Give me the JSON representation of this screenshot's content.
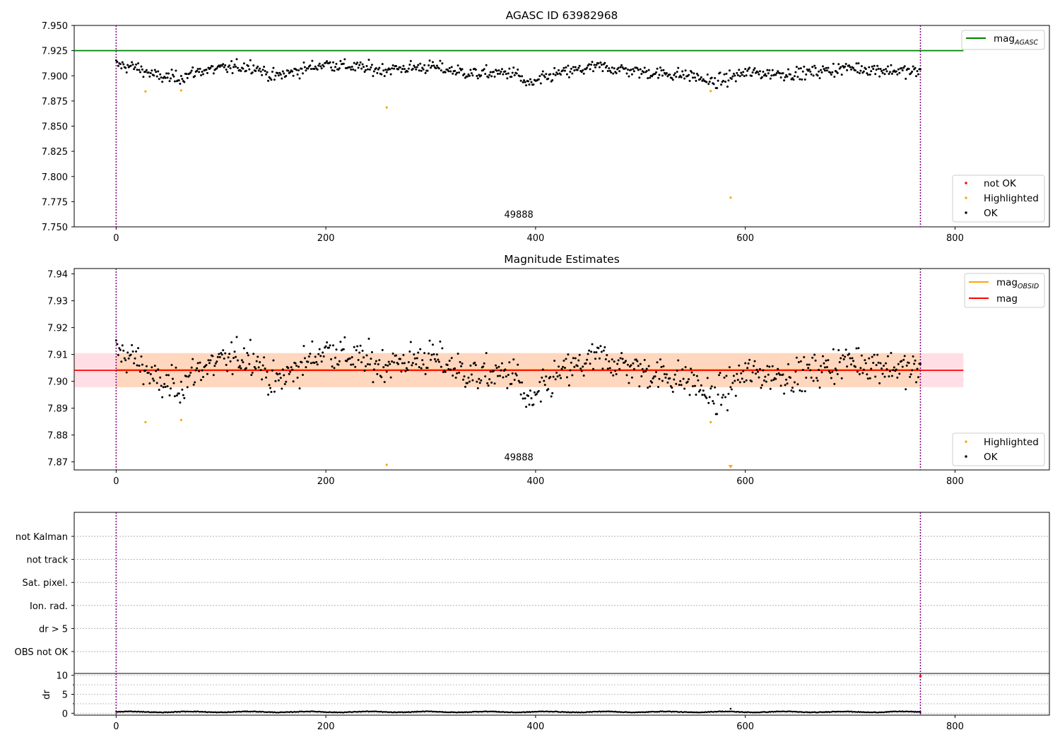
{
  "page_values": {
    "observation_id": "49888"
  },
  "chart_data": [
    {
      "type": "scatter",
      "title": "AGASC ID 63982968",
      "xlim": [
        -40,
        890
      ],
      "ylim": [
        7.75,
        7.95
      ],
      "x_ticks": [
        0,
        200,
        400,
        600,
        800
      ],
      "y_ticks": [
        7.75,
        7.775,
        7.8,
        7.825,
        7.85,
        7.875,
        7.9,
        7.925,
        7.95
      ],
      "y_tick_labels": [
        "7.750",
        "7.775",
        "7.800",
        "7.825",
        "7.850",
        "7.875",
        "7.900",
        "7.925",
        "7.950"
      ],
      "reference_lines": [
        {
          "name": "mag",
          "sub": "AGASC",
          "y": 7.925,
          "x_range": [
            -40,
            808
          ],
          "color": "#008000"
        }
      ],
      "vertical_lines": [
        0,
        767
      ],
      "annotation": {
        "text": "49888",
        "x": 384,
        "y": 7.759
      },
      "legends": [
        {
          "position": "top-right",
          "entries": [
            {
              "label": "mag",
              "sub": "AGASC",
              "marker": "line",
              "color": "#008000"
            }
          ]
        },
        {
          "position": "bottom-right",
          "entries": [
            {
              "label": "not OK",
              "marker": "dot",
              "color": "#ff0000"
            },
            {
              "label": "Highlighted",
              "marker": "dot",
              "color": "#ffa500"
            },
            {
              "label": "OK",
              "marker": "dot",
              "color": "#000000"
            }
          ]
        }
      ],
      "ok_series": {
        "name": "OK",
        "color": "#000000",
        "x_start": 0,
        "x_end": 767,
        "n": 768,
        "trend": [
          [
            0,
            7.911
          ],
          [
            20,
            7.908
          ],
          [
            40,
            7.899
          ],
          [
            60,
            7.898
          ],
          [
            80,
            7.905
          ],
          [
            130,
            7.91
          ],
          [
            150,
            7.899
          ],
          [
            200,
            7.912
          ],
          [
            250,
            7.906
          ],
          [
            300,
            7.909
          ],
          [
            340,
            7.902
          ],
          [
            380,
            7.903
          ],
          [
            393,
            7.891
          ],
          [
            420,
            7.902
          ],
          [
            460,
            7.909
          ],
          [
            500,
            7.904
          ],
          [
            550,
            7.9
          ],
          [
            570,
            7.893
          ],
          [
            600,
            7.903
          ],
          [
            650,
            7.902
          ],
          [
            700,
            7.908
          ],
          [
            760,
            7.904
          ]
        ],
        "scatter_sd": 0.0045
      },
      "highlighted": [
        {
          "x": 28,
          "y": 7.8845
        },
        {
          "x": 62,
          "y": 7.8855
        },
        {
          "x": 258,
          "y": 7.8685
        },
        {
          "x": 567,
          "y": 7.8848
        },
        {
          "x": 586,
          "y": 7.779
        }
      ],
      "not_ok": []
    },
    {
      "type": "scatter",
      "title": "Magnitude Estimates",
      "xlim": [
        -40,
        890
      ],
      "ylim": [
        7.867,
        7.942
      ],
      "x_ticks": [
        0,
        200,
        400,
        600,
        800
      ],
      "y_ticks": [
        7.87,
        7.88,
        7.89,
        7.9,
        7.91,
        7.92,
        7.93,
        7.94
      ],
      "y_tick_labels": [
        "7.87",
        "7.88",
        "7.89",
        "7.90",
        "7.91",
        "7.92",
        "7.93",
        "7.94"
      ],
      "reference_lines": [
        {
          "name": "mag",
          "sub": "OBSID",
          "y": 7.9042,
          "x_range": [
            0,
            767
          ],
          "color": "#ffa500"
        },
        {
          "name": "mag",
          "y": 7.9041,
          "x_range": [
            -40,
            808
          ],
          "color": "#ff0000"
        }
      ],
      "bands": [
        {
          "y_range": [
            7.8978,
            7.9105
          ],
          "x_range": [
            -40,
            808
          ],
          "color": "#ffc0cb"
        },
        {
          "y_range": [
            7.8978,
            7.9105
          ],
          "x_range": [
            0,
            767
          ],
          "color": "#ffd4b0"
        }
      ],
      "vertical_lines": [
        0,
        767
      ],
      "annotation": {
        "text": "49888",
        "x": 384,
        "y": 7.8705
      },
      "legends": [
        {
          "position": "top-right",
          "entries": [
            {
              "label": "mag",
              "sub": "OBSID",
              "marker": "line",
              "color": "#ffa500"
            },
            {
              "label": "mag",
              "marker": "line",
              "color": "#ff0000"
            }
          ]
        },
        {
          "position": "bottom-right",
          "entries": [
            {
              "label": "Highlighted",
              "marker": "dot",
              "color": "#ffa500"
            },
            {
              "label": "OK",
              "marker": "dot",
              "color": "#000000"
            }
          ]
        }
      ],
      "highlighted": [
        {
          "x": 28,
          "y": 7.8848
        },
        {
          "x": 62,
          "y": 7.8856
        },
        {
          "x": 258,
          "y": 7.8689
        },
        {
          "x": 567,
          "y": 7.8848
        }
      ],
      "out_of_range_markers": [
        {
          "x": 586,
          "direction": "down",
          "color": "#ffa500"
        }
      ]
    },
    {
      "type": "scatter",
      "title": "",
      "category_rows": [
        "not Kalman",
        "not track",
        "Sat. pixel.",
        "Ion. rad.",
        "dr > 5",
        "OBS not OK"
      ],
      "vertical_lines": [
        0,
        767
      ],
      "xlim": [
        -40,
        890
      ],
      "x_ticks": [
        0,
        200,
        400,
        600,
        800
      ]
    },
    {
      "type": "scatter",
      "title": "",
      "ylabel": "dr",
      "xlim": [
        -40,
        890
      ],
      "ylim": [
        -0.5,
        10.5
      ],
      "y_ticks": [
        0,
        5,
        10
      ],
      "x_ticks": [
        0,
        200,
        400,
        600,
        800
      ],
      "vertical_lines": [
        0,
        767
      ],
      "dr_series": {
        "typical": 0.35,
        "spike": {
          "x": 586,
          "y": 1.2
        },
        "n": 768
      },
      "marker": {
        "x": 767,
        "y": 9.8,
        "color": "#ff0000"
      }
    }
  ]
}
